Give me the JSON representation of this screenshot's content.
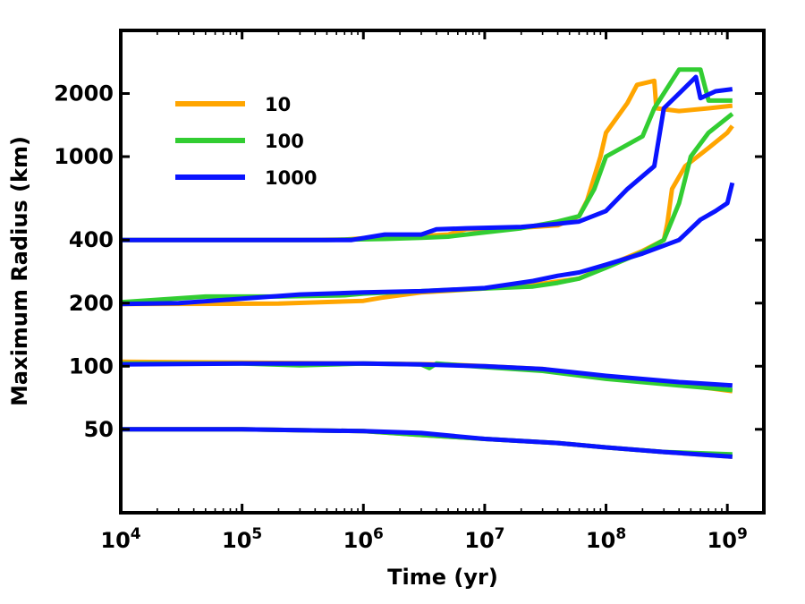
{
  "chart_data": {
    "type": "line",
    "title": "",
    "xlabel": "Time (yr)",
    "ylabel": "Maximum Radius (km)",
    "xscale": "log",
    "yscale": "log",
    "xlim": [
      10000,
      2000000000
    ],
    "ylim": [
      20,
      4000
    ],
    "x_ticks": [
      {
        "value": 10000,
        "base": "10",
        "exp": "4"
      },
      {
        "value": 100000,
        "base": "10",
        "exp": "5"
      },
      {
        "value": 1000000,
        "base": "10",
        "exp": "6"
      },
      {
        "value": 10000000,
        "base": "10",
        "exp": "7"
      },
      {
        "value": 100000000,
        "base": "10",
        "exp": "8"
      },
      {
        "value": 1000000000,
        "base": "10",
        "exp": "9"
      }
    ],
    "y_ticks": [
      {
        "value": 50,
        "label": "50"
      },
      {
        "value": 100,
        "label": "100"
      },
      {
        "value": 200,
        "label": "200"
      },
      {
        "value": 400,
        "label": "400"
      },
      {
        "value": 1000,
        "label": "1000"
      },
      {
        "value": 2000,
        "label": "2000"
      }
    ],
    "legend_position": "top-left",
    "series": [
      {
        "name": "10",
        "color": "#FFA500",
        "curves": [
          [
            [
              10000,
              50
            ],
            [
              100000,
              50
            ],
            [
              1000000,
              49
            ],
            [
              3000000,
              47
            ],
            [
              10000000,
              45
            ],
            [
              40000000,
              43
            ],
            [
              100000000,
              41
            ],
            [
              300000000,
              39
            ],
            [
              1100000000,
              37
            ]
          ],
          [
            [
              10000,
              105
            ],
            [
              100000,
              104
            ],
            [
              1000000,
              103
            ],
            [
              5000000,
              102
            ],
            [
              10000000,
              100
            ],
            [
              30000000,
              97
            ],
            [
              100000000,
              88
            ],
            [
              400000000,
              82
            ],
            [
              1100000000,
              76
            ]
          ],
          [
            [
              10000,
              198
            ],
            [
              200000,
              199
            ],
            [
              1000000,
              205
            ],
            [
              1400000,
              212
            ],
            [
              3000000,
              225
            ],
            [
              10000000,
              235
            ],
            [
              30000000,
              248
            ],
            [
              60000000,
              262
            ],
            [
              100000000,
              300
            ],
            [
              200000000,
              355
            ],
            [
              300000000,
              400
            ],
            [
              320000000,
              480
            ],
            [
              350000000,
              700
            ],
            [
              450000000,
              900
            ],
            [
              700000000,
              1100
            ],
            [
              1000000000,
              1300
            ],
            [
              1100000000,
              1400
            ]
          ],
          [
            [
              10000,
              400
            ],
            [
              300000,
              400
            ],
            [
              700000,
              402
            ],
            [
              1500000,
              415
            ],
            [
              3000000,
              418
            ],
            [
              5000000,
              425
            ],
            [
              7000000,
              450
            ],
            [
              20000000,
              458
            ],
            [
              40000000,
              470
            ],
            [
              60000000,
              520
            ],
            [
              70000000,
              620
            ],
            [
              90000000,
              1000
            ],
            [
              100000000,
              1300
            ],
            [
              150000000,
              1800
            ],
            [
              180000000,
              2200
            ],
            [
              250000000,
              2300
            ],
            [
              260000000,
              1700
            ],
            [
              400000000,
              1650
            ],
            [
              700000000,
              1700
            ],
            [
              1100000000,
              1750
            ]
          ]
        ]
      },
      {
        "name": "100",
        "color": "#32CD32",
        "curves": [
          [
            [
              10000,
              50
            ],
            [
              100000,
              50
            ],
            [
              1000000,
              49
            ],
            [
              3000000,
              47
            ],
            [
              10000000,
              45
            ],
            [
              40000000,
              43
            ],
            [
              100000000,
              41
            ],
            [
              300000000,
              39
            ],
            [
              1100000000,
              38
            ]
          ],
          [
            [
              10000,
              103
            ],
            [
              100000,
              103
            ],
            [
              300000,
              101
            ],
            [
              1000000,
              103
            ],
            [
              3000000,
              102
            ],
            [
              3500000,
              98
            ],
            [
              4000000,
              103
            ],
            [
              10000000,
              99
            ],
            [
              30000000,
              95
            ],
            [
              100000000,
              87
            ],
            [
              400000000,
              81
            ],
            [
              1100000000,
              77
            ]
          ],
          [
            [
              10000,
              202
            ],
            [
              50000,
              215
            ],
            [
              200000,
              215
            ],
            [
              700000,
              218
            ],
            [
              1000000,
              222
            ],
            [
              3000000,
              228
            ],
            [
              10000000,
              235
            ],
            [
              25000000,
              240
            ],
            [
              40000000,
              250
            ],
            [
              60000000,
              262
            ],
            [
              100000000,
              295
            ],
            [
              200000000,
              350
            ],
            [
              300000000,
              400
            ],
            [
              400000000,
              600
            ],
            [
              500000000,
              1000
            ],
            [
              700000000,
              1300
            ],
            [
              1100000000,
              1600
            ]
          ],
          [
            [
              10000,
              400
            ],
            [
              500000,
              400
            ],
            [
              1500000,
              405
            ],
            [
              3000000,
              410
            ],
            [
              5000000,
              415
            ],
            [
              7000000,
              425
            ],
            [
              20000000,
              455
            ],
            [
              40000000,
              490
            ],
            [
              60000000,
              520
            ],
            [
              80000000,
              700
            ],
            [
              100000000,
              1000
            ],
            [
              200000000,
              1250
            ],
            [
              250000000,
              1700
            ],
            [
              400000000,
              2600
            ],
            [
              600000000,
              2600
            ],
            [
              700000000,
              1850
            ],
            [
              1100000000,
              1850
            ]
          ]
        ]
      },
      {
        "name": "1000",
        "color": "#0A14FF",
        "curves": [
          [
            [
              10000,
              50
            ],
            [
              100000,
              50
            ],
            [
              1000000,
              49
            ],
            [
              3000000,
              48
            ],
            [
              10000000,
              45
            ],
            [
              40000000,
              43
            ],
            [
              100000000,
              41
            ],
            [
              300000000,
              39
            ],
            [
              1100000000,
              37
            ]
          ],
          [
            [
              10000,
              102
            ],
            [
              100000,
              103
            ],
            [
              1000000,
              103
            ],
            [
              3000000,
              102
            ],
            [
              10000000,
              100
            ],
            [
              30000000,
              97
            ],
            [
              100000000,
              90
            ],
            [
              400000000,
              84
            ],
            [
              1100000000,
              81
            ]
          ],
          [
            [
              10000,
              198
            ],
            [
              30000,
              200
            ],
            [
              100000,
              210
            ],
            [
              300000,
              220
            ],
            [
              1000000,
              225
            ],
            [
              3000000,
              228
            ],
            [
              10000000,
              236
            ],
            [
              25000000,
              255
            ],
            [
              40000000,
              270
            ],
            [
              60000000,
              280
            ],
            [
              100000000,
              305
            ],
            [
              200000000,
              345
            ],
            [
              400000000,
              400
            ],
            [
              600000000,
              500
            ],
            [
              800000000,
              550
            ],
            [
              1000000000,
              600
            ],
            [
              1100000000,
              750
            ]
          ],
          [
            [
              10000,
              400
            ],
            [
              800000,
              400
            ],
            [
              1500000,
              425
            ],
            [
              3000000,
              425
            ],
            [
              4000000,
              450
            ],
            [
              7000000,
              455
            ],
            [
              20000000,
              462
            ],
            [
              40000000,
              478
            ],
            [
              60000000,
              490
            ],
            [
              100000000,
              550
            ],
            [
              150000000,
              700
            ],
            [
              250000000,
              900
            ],
            [
              300000000,
              1700
            ],
            [
              400000000,
              2000
            ],
            [
              550000000,
              2400
            ],
            [
              600000000,
              1900
            ],
            [
              800000000,
              2050
            ],
            [
              1100000000,
              2100
            ]
          ]
        ]
      }
    ]
  }
}
